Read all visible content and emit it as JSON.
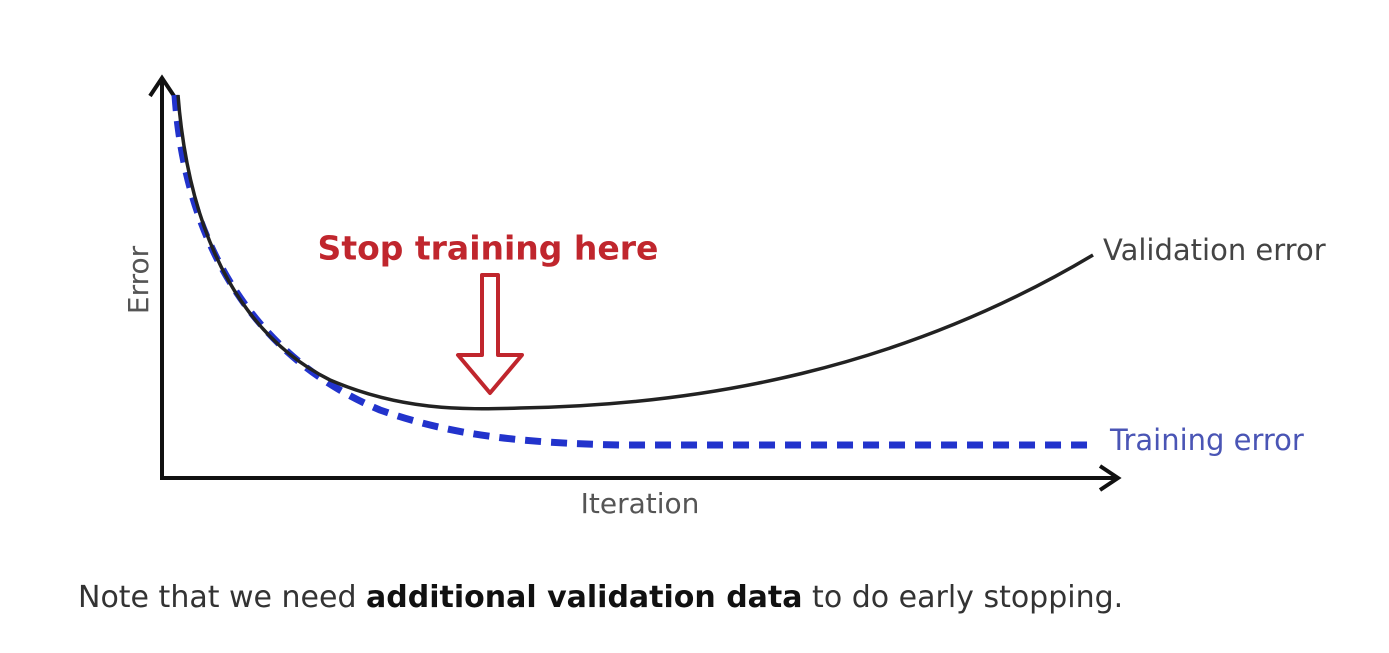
{
  "axes": {
    "y_label": "Error",
    "x_label": "Iteration"
  },
  "annotation": "Stop training here",
  "curves": [
    {
      "label": "Validation error"
    },
    {
      "label": "Training error"
    }
  ],
  "note": {
    "before": "Note that we need ",
    "bold": "additional validation data",
    "after": " to do early stopping."
  }
}
